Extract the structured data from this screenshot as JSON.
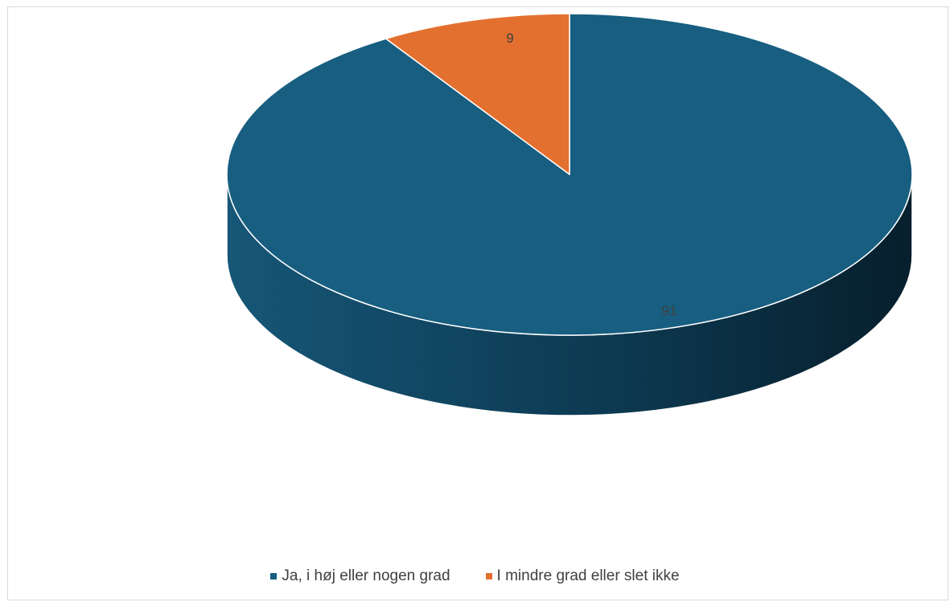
{
  "chart_data": {
    "type": "pie",
    "title": "",
    "series": [
      {
        "name": "",
        "values": [
          91,
          9
        ]
      }
    ],
    "categories": [
      "Ja, i høj eller nogen grad",
      "I mindre grad eller slet ikke"
    ],
    "data_labels": [
      "91",
      "9"
    ],
    "colors": [
      "#175e80",
      "#e4702f"
    ],
    "style": "3d",
    "legend_position": "bottom"
  }
}
